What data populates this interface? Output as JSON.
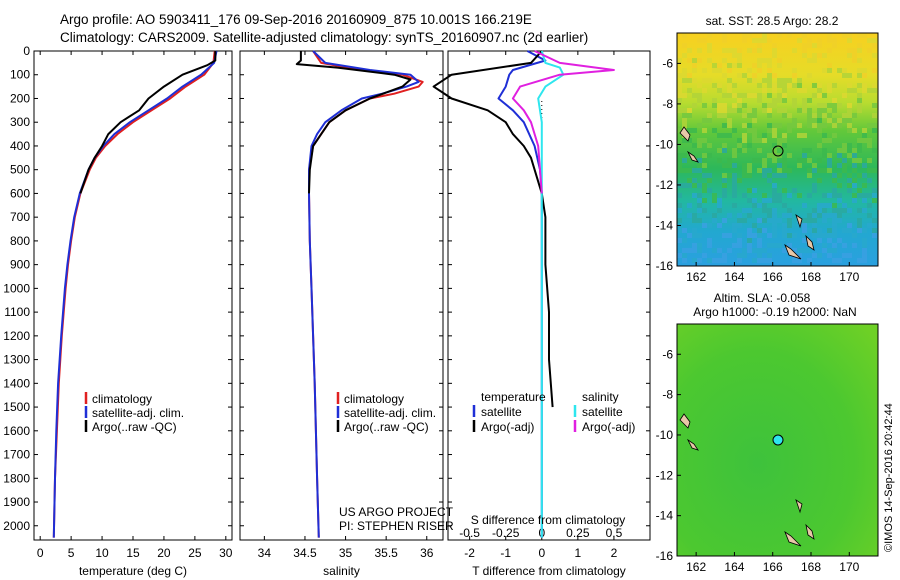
{
  "header": {
    "line1": "Argo profile: AO 5903411_176 09-Sep-2016 20160909_875 10.001S 166.219E",
    "line2": "Climatology: CARS2009. Satellite-adjusted climatology: synTS_20160907.nc (2d earlier)"
  },
  "colors": {
    "climatology": "#e02020",
    "satellite": "#1f2fd6",
    "argo": "#000000",
    "salinity_sat": "#2ee6ee",
    "salinity_argo": "#e020e0"
  },
  "chart_data": [
    {
      "type": "line",
      "ylabel_ticks": [
        0,
        100,
        200,
        300,
        400,
        500,
        600,
        700,
        800,
        900,
        1000,
        1100,
        1200,
        1300,
        1400,
        1500,
        1600,
        1700,
        1800,
        1900,
        2000
      ],
      "ylim": [
        0,
        2060
      ],
      "xlim": [
        -1,
        31
      ],
      "xticks": [
        0,
        5,
        10,
        15,
        20,
        25,
        30
      ],
      "xlabel": "temperature (deg C)",
      "legend": [
        "climatology",
        "satellite-adj. clim.",
        "Argo(..raw -QC)"
      ],
      "series": [
        {
          "name": "climatology",
          "depth": [
            0,
            50,
            100,
            150,
            200,
            250,
            300,
            350,
            400,
            450,
            500,
            600,
            700,
            800,
            900,
            1000,
            1200,
            1400,
            1600,
            1800,
            2050
          ],
          "values": [
            28.2,
            28.0,
            26.5,
            23.5,
            21.0,
            18.0,
            15.0,
            12.5,
            10.5,
            9.0,
            8.0,
            6.5,
            5.6,
            5.0,
            4.5,
            4.1,
            3.5,
            3.0,
            2.7,
            2.4,
            2.2
          ]
        },
        {
          "name": "satellite-adj. clim.",
          "depth": [
            0,
            50,
            100,
            150,
            200,
            250,
            300,
            350,
            400,
            450,
            500,
            600,
            700,
            800,
            900,
            1000,
            1200,
            1400,
            1600,
            1800,
            2050
          ],
          "values": [
            28.5,
            28.1,
            26.0,
            23.0,
            20.5,
            17.5,
            14.5,
            12.0,
            10.2,
            8.8,
            7.8,
            6.4,
            5.5,
            4.9,
            4.4,
            4.0,
            3.4,
            2.9,
            2.6,
            2.4,
            2.2
          ]
        },
        {
          "name": "Argo(..raw -QC)",
          "depth": [
            0,
            40,
            60,
            100,
            150,
            200,
            250,
            300,
            350,
            400,
            450,
            500,
            600
          ],
          "values": [
            28.3,
            28.3,
            27.0,
            23.0,
            20.0,
            17.5,
            16.0,
            13.0,
            11.0,
            10.0,
            8.8,
            7.8,
            6.5
          ]
        }
      ]
    },
    {
      "type": "line",
      "ylim": [
        0,
        2060
      ],
      "xlim": [
        33.7,
        36.2
      ],
      "xticks": [
        34,
        34.5,
        35,
        35.5,
        36
      ],
      "xlabel": "salinity",
      "legend": [
        "climatology",
        "satellite-adj. clim.",
        "Argo(..raw -QC)"
      ],
      "series": [
        {
          "name": "climatology",
          "depth": [
            0,
            50,
            80,
            100,
            130,
            150,
            180,
            200,
            250,
            300,
            350,
            400,
            500,
            600,
            800,
            1000,
            1400,
            1800,
            2050
          ],
          "values": [
            34.6,
            34.7,
            35.2,
            35.7,
            35.95,
            35.9,
            35.6,
            35.3,
            35.0,
            34.8,
            34.7,
            34.6,
            34.55,
            34.55,
            34.56,
            34.58,
            34.62,
            34.65,
            34.67
          ]
        },
        {
          "name": "satellite-adj. clim.",
          "depth": [
            0,
            50,
            80,
            100,
            130,
            150,
            180,
            200,
            250,
            300,
            350,
            400,
            500,
            600,
            800,
            1000,
            1400,
            1800,
            2050
          ],
          "values": [
            34.6,
            34.75,
            35.3,
            35.8,
            35.9,
            35.75,
            35.45,
            35.2,
            34.95,
            34.75,
            34.65,
            34.58,
            34.55,
            34.55,
            34.56,
            34.58,
            34.62,
            34.65,
            34.67
          ]
        },
        {
          "name": "Argo(..raw -QC)",
          "depth": [
            0,
            40,
            55,
            70,
            100,
            120,
            150,
            200,
            250,
            300,
            350,
            400,
            500,
            600
          ],
          "values": [
            34.45,
            34.45,
            34.4,
            34.9,
            35.6,
            35.8,
            35.7,
            35.3,
            35.0,
            34.8,
            34.7,
            34.6,
            34.56,
            34.55
          ]
        }
      ],
      "annotation": [
        "US ARGO PROJECT",
        "PI: STEPHEN RISER"
      ]
    },
    {
      "type": "line",
      "ylim": [
        0,
        2060
      ],
      "xlim": [
        -2.6,
        3.0
      ],
      "xticks": [
        -2,
        -1,
        0,
        1,
        2
      ],
      "top_ticks": [
        "-0.5",
        "-0.25",
        "0",
        "0.25",
        "0.5"
      ],
      "xlabel": "T difference from climatology",
      "xlabel_top": "S difference from climatology",
      "legend": {
        "temperature": [
          "satellite",
          "Argo(-adj)"
        ],
        "salinity": [
          "satellite",
          "Argo(-adj)"
        ]
      },
      "series": [
        {
          "name": "T satellite",
          "depth": [
            0,
            40,
            80,
            100,
            150,
            200,
            250,
            300,
            400,
            500,
            600,
            800,
            2050
          ],
          "values": [
            -0.4,
            0.1,
            -0.8,
            -0.9,
            -1.0,
            -1.2,
            -0.8,
            -0.5,
            -0.2,
            -0.05,
            0,
            0,
            0
          ]
        },
        {
          "name": "T Argo(-adj)",
          "depth": [
            0,
            50,
            100,
            150,
            200,
            250,
            300,
            350,
            400,
            450,
            500,
            550,
            600,
            700,
            900,
            1100,
            1300,
            1500
          ],
          "values": [
            0,
            -0.3,
            -2.5,
            -3.0,
            -2.5,
            -1.5,
            -1.0,
            -0.8,
            -0.5,
            -0.3,
            -0.2,
            -0.1,
            0,
            0.1,
            0.1,
            0.2,
            0.2,
            0.3
          ]
        },
        {
          "name": "S satellite",
          "depth": [
            0,
            50,
            70,
            100,
            150,
            200,
            300,
            400,
            500,
            2050
          ],
          "values": [
            0.0,
            0.1,
            0.5,
            0.6,
            0.1,
            -0.1,
            0,
            0,
            0,
            0
          ]
        },
        {
          "name": "S Argo(-adj)",
          "depth": [
            0,
            50,
            80,
            100,
            150,
            200,
            250,
            300,
            400,
            600
          ],
          "values": [
            -0.2,
            0.5,
            2.0,
            0.5,
            -0.6,
            -0.8,
            -0.5,
            -0.3,
            -0.1,
            0
          ]
        }
      ]
    },
    {
      "type": "heatmap",
      "title": "sat. SST: 28.5 Argo: 28.2",
      "xticks": [
        162,
        164,
        166,
        168,
        170
      ],
      "yticks": [
        -6,
        -8,
        -10,
        -12,
        -14,
        -16
      ]
    },
    {
      "type": "heatmap",
      "title_lines": [
        "Altim. SLA: -0.058",
        "Argo h1000: -0.19 h2000: NaN"
      ],
      "xticks": [
        162,
        164,
        166,
        168,
        170
      ],
      "yticks": [
        -6,
        -8,
        -10,
        -12,
        -14,
        -16
      ]
    }
  ],
  "footer": {
    "stamp": "©IMOS 14-Sep-2016 20:42:44"
  }
}
